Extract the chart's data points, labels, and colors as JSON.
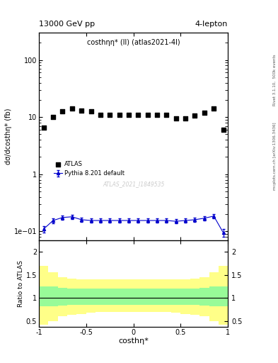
{
  "title_left": "13000 GeV pp",
  "title_right": "4-lepton",
  "plot_label": "cos#thη* (ll) (atlas2021-4l)",
  "xlabel": "costhη*",
  "ylabel_main": "dσ/dcosthη* (fb)",
  "ylabel_ratio": "Ratio to ATLAS",
  "right_label_top": "Rivet 3.1.10,  500k events",
  "right_label_bottom": "mcplots.cern.ch [arXiv:1306.3436]",
  "watermark": "ATLAS_2021_I1849535",
  "atlas_label": "ATLAS",
  "mc_label": "Pythia 8.201 default",
  "xlim": [
    -1.0,
    1.0
  ],
  "ylim_main": [
    0.07,
    300
  ],
  "ylim_ratio": [
    0.38,
    2.25
  ],
  "data_x": [
    -0.95,
    -0.85,
    -0.75,
    -0.65,
    -0.55,
    -0.45,
    -0.35,
    -0.25,
    -0.15,
    -0.05,
    0.05,
    0.15,
    0.25,
    0.35,
    0.45,
    0.55,
    0.65,
    0.75,
    0.85,
    0.95
  ],
  "data_y_black": [
    6.5,
    10.0,
    12.5,
    14.0,
    13.0,
    12.5,
    11.0,
    11.0,
    11.0,
    11.0,
    11.0,
    11.0,
    11.0,
    11.0,
    9.5,
    9.5,
    10.5,
    12.0,
    14.0,
    6.0
  ],
  "data_y_blue": [
    0.11,
    0.155,
    0.175,
    0.18,
    0.16,
    0.155,
    0.155,
    0.155,
    0.155,
    0.155,
    0.155,
    0.155,
    0.155,
    0.155,
    0.15,
    0.155,
    0.16,
    0.17,
    0.185,
    0.095
  ],
  "data_y_blue_err": [
    0.015,
    0.015,
    0.015,
    0.015,
    0.012,
    0.012,
    0.012,
    0.012,
    0.012,
    0.012,
    0.012,
    0.012,
    0.012,
    0.012,
    0.012,
    0.012,
    0.012,
    0.015,
    0.015,
    0.015
  ],
  "ratio_x_edges": [
    -1.0,
    -0.9,
    -0.8,
    -0.7,
    -0.6,
    -0.5,
    -0.4,
    -0.3,
    -0.2,
    -0.1,
    0.0,
    0.1,
    0.2,
    0.3,
    0.4,
    0.5,
    0.6,
    0.7,
    0.8,
    0.9,
    1.0
  ],
  "ratio_green_upper": [
    1.25,
    1.25,
    1.22,
    1.2,
    1.2,
    1.2,
    1.2,
    1.2,
    1.2,
    1.2,
    1.2,
    1.2,
    1.2,
    1.2,
    1.2,
    1.2,
    1.2,
    1.22,
    1.25,
    1.25
  ],
  "ratio_green_lower": [
    0.82,
    0.82,
    0.83,
    0.85,
    0.85,
    0.85,
    0.85,
    0.85,
    0.85,
    0.85,
    0.85,
    0.85,
    0.85,
    0.85,
    0.85,
    0.85,
    0.85,
    0.83,
    0.82,
    0.82
  ],
  "ratio_yellow_upper": [
    1.7,
    1.55,
    1.45,
    1.42,
    1.4,
    1.4,
    1.4,
    1.4,
    1.4,
    1.4,
    1.4,
    1.4,
    1.4,
    1.4,
    1.4,
    1.4,
    1.42,
    1.45,
    1.55,
    1.7
  ],
  "ratio_yellow_lower": [
    0.42,
    0.5,
    0.6,
    0.63,
    0.65,
    0.68,
    0.7,
    0.7,
    0.7,
    0.7,
    0.7,
    0.7,
    0.7,
    0.7,
    0.68,
    0.65,
    0.63,
    0.6,
    0.5,
    0.42
  ],
  "color_black": "#000000",
  "color_blue": "#0000cc",
  "color_green": "#98fb98",
  "color_yellow": "#ffff88",
  "color_watermark": "#cccccc",
  "bg_color": "#ffffff"
}
